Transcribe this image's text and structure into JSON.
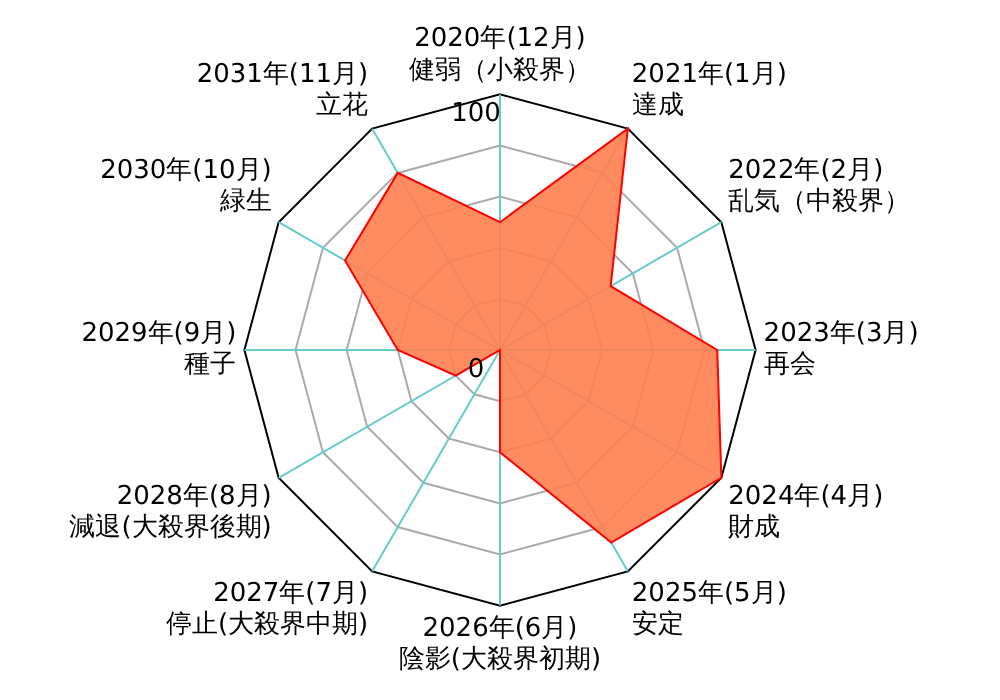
{
  "chart_data": {
    "type": "radar",
    "categories": [
      "2020年(12月)\n健弱（小殺界）",
      "2021年(1月)\n達成",
      "2022年(2月)\n乱気（中殺界）",
      "2023年(3月)\n再会",
      "2024年(4月)\n財成",
      "2025年(5月)\n安定",
      "2026年(6月)\n陰影(大殺界初期)",
      "2027年(7月)\n停止(大殺界中期)",
      "2028年(8月)\n減退(大殺界後期)",
      "2029年(9月)\n種子",
      "2030年(10月)\n緑生",
      "2031年(11月)\n立花"
    ],
    "series": [
      {
        "color": "#ff7f50",
        "values": [
          50,
          100,
          50,
          85,
          100,
          87,
          40,
          0,
          20,
          40,
          70,
          80
        ]
      }
    ],
    "ylim": [
      0,
      100
    ],
    "yticks": [
      0,
      100
    ],
    "grid": true,
    "legend": false,
    "marker": "none"
  }
}
